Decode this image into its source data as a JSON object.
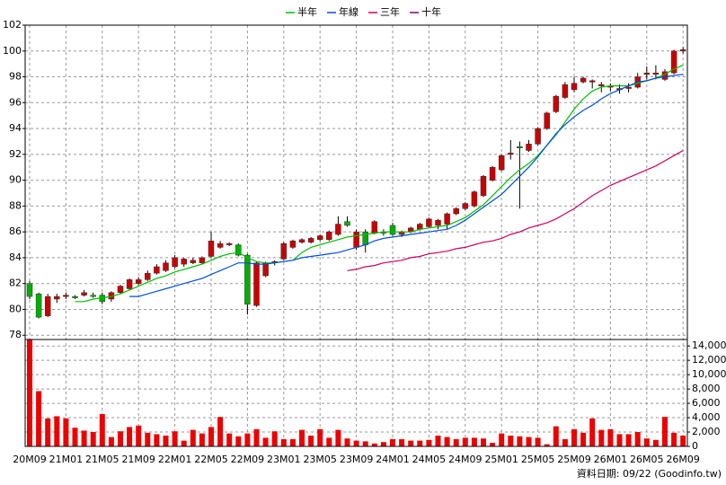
{
  "chart_data": [
    {
      "type": "candlestick",
      "categories": [
        "20M09",
        null,
        null,
        null,
        "21M01",
        null,
        null,
        null,
        "21M05",
        null,
        null,
        null,
        "21M09",
        null,
        null,
        null,
        "22M01",
        null,
        null,
        null,
        "22M05",
        null,
        null,
        null,
        "22M09",
        null,
        null,
        null,
        "23M01",
        null,
        null,
        null,
        "23M05",
        null,
        null,
        null,
        "23M09",
        null,
        null,
        null,
        "24M01",
        null,
        null,
        null,
        "24M05",
        null,
        null,
        null,
        "24M09",
        null,
        null,
        null,
        "25M01",
        null,
        null,
        null,
        "25M05",
        null,
        null,
        null,
        "25M09",
        null,
        null,
        null,
        "26M01",
        null,
        null,
        null,
        "26M05",
        null,
        null,
        null,
        "26M09"
      ],
      "open": [
        82.0,
        81.2,
        79.5,
        80.8,
        81.0,
        81.0,
        81.1,
        81.1,
        81.1,
        80.8,
        81.3,
        81.6,
        82.0,
        82.3,
        82.8,
        83.0,
        83.3,
        83.5,
        83.6,
        83.6,
        84.1,
        84.8,
        85.0,
        85.0,
        84.2,
        80.3,
        82.6,
        83.6,
        83.9,
        84.8,
        85.2,
        85.2,
        85.4,
        85.4,
        85.8,
        86.8,
        84.8,
        86.0,
        85.9,
        86.0,
        86.5,
        85.8,
        86.0,
        86.2,
        86.4,
        86.5,
        86.6,
        87.4,
        87.8,
        88.0,
        88.8,
        90.0,
        90.8,
        92.0,
        92.6,
        92.3,
        92.8,
        94.0,
        95.3,
        96.4,
        97.0,
        97.6,
        97.6,
        97.3,
        97.2,
        97.0,
        97.1,
        97.2,
        98.2,
        98.2,
        97.8,
        98.3,
        100.0
      ],
      "high": [
        82.2,
        81.3,
        81.2,
        81.2,
        81.3,
        81.1,
        81.5,
        81.3,
        81.3,
        81.4,
        81.9,
        82.4,
        82.5,
        83.0,
        83.5,
        83.8,
        84.2,
        84.0,
        84.0,
        84.1,
        86.0,
        85.3,
        85.2,
        85.1,
        84.3,
        83.7,
        83.7,
        83.8,
        85.2,
        85.4,
        85.5,
        85.6,
        85.8,
        86.1,
        87.2,
        87.2,
        86.2,
        86.2,
        86.9,
        86.2,
        86.7,
        86.1,
        86.4,
        86.7,
        87.1,
        87.0,
        87.5,
        87.9,
        88.3,
        89.2,
        90.4,
        91.1,
        92.0,
        93.1,
        93.0,
        93.1,
        94.1,
        95.3,
        96.6,
        97.6,
        98.0,
        98.0,
        97.8,
        97.6,
        97.5,
        97.4,
        97.5,
        98.3,
        98.8,
        98.9,
        98.6,
        100.1,
        100.3
      ],
      "low": [
        80.8,
        79.3,
        79.4,
        80.5,
        80.8,
        80.8,
        81.0,
        80.9,
        80.4,
        80.6,
        81.2,
        81.5,
        81.9,
        82.2,
        82.7,
        82.9,
        83.2,
        83.3,
        83.5,
        83.5,
        84.0,
        84.7,
        84.9,
        84.1,
        79.6,
        80.2,
        82.5,
        83.4,
        83.8,
        84.7,
        85.1,
        85.1,
        85.3,
        85.3,
        85.7,
        86.4,
        84.6,
        84.4,
        85.8,
        85.7,
        85.7,
        85.6,
        85.9,
        86.1,
        86.3,
        86.2,
        86.2,
        87.3,
        87.7,
        87.9,
        88.7,
        89.9,
        90.7,
        91.6,
        87.8,
        92.2,
        92.7,
        93.9,
        95.2,
        96.3,
        96.8,
        97.5,
        97.1,
        96.8,
        96.9,
        96.7,
        96.8,
        97.1,
        97.8,
        97.8,
        97.7,
        98.2,
        99.8
      ],
      "close": [
        81.0,
        79.4,
        81.0,
        81.0,
        81.1,
        80.9,
        81.3,
        81.0,
        80.6,
        81.3,
        81.8,
        82.3,
        82.3,
        82.8,
        83.3,
        83.6,
        84.0,
        83.9,
        83.8,
        84.0,
        85.3,
        85.1,
        85.1,
        84.2,
        80.4,
        83.6,
        83.6,
        83.7,
        85.1,
        85.3,
        85.4,
        85.5,
        85.7,
        86.0,
        86.6,
        86.5,
        86.0,
        85.0,
        86.8,
        85.9,
        85.8,
        86.0,
        86.3,
        86.6,
        87.0,
        86.9,
        87.4,
        87.8,
        88.2,
        89.1,
        90.3,
        91.0,
        91.9,
        92.1,
        92.5,
        92.8,
        94.0,
        95.2,
        96.5,
        97.4,
        97.5,
        97.9,
        97.7,
        97.4,
        97.3,
        97.1,
        97.2,
        98.0,
        98.3,
        98.3,
        98.4,
        100.0,
        100.1
      ],
      "up_color": "#cc0000",
      "down_color": "#00b000",
      "series": [
        {
          "name": "半年",
          "color": "#00c000",
          "values": [
            null,
            null,
            null,
            null,
            null,
            80.6,
            80.6,
            80.8,
            80.9,
            81.0,
            81.2,
            81.5,
            81.8,
            82.1,
            82.4,
            82.6,
            82.9,
            83.1,
            83.3,
            83.5,
            83.8,
            84.1,
            84.3,
            84.4,
            84.0,
            83.7,
            83.6,
            83.6,
            83.7,
            83.8,
            84.4,
            84.8,
            85.0,
            85.2,
            85.4,
            85.6,
            85.7,
            85.8,
            85.9,
            86.0,
            86.0,
            86.0,
            86.0,
            86.2,
            86.3,
            86.4,
            86.5,
            86.8,
            87.1,
            87.6,
            88.1,
            88.8,
            89.5,
            90.2,
            90.8,
            91.3,
            91.9,
            92.7,
            93.5,
            94.5,
            95.5,
            96.3,
            96.9,
            97.2,
            97.3,
            97.3,
            97.3,
            97.5,
            97.7,
            97.9,
            98.2,
            98.6,
            98.9
          ]
        },
        {
          "name": "年線",
          "color": "#0050e0",
          "values": [
            null,
            null,
            null,
            null,
            null,
            null,
            null,
            null,
            null,
            null,
            null,
            81.0,
            81.0,
            81.2,
            81.4,
            81.6,
            81.8,
            82.0,
            82.2,
            82.4,
            82.7,
            83.0,
            83.3,
            83.6,
            83.6,
            83.5,
            83.5,
            83.6,
            83.7,
            83.8,
            84.0,
            84.1,
            84.2,
            84.3,
            84.4,
            84.6,
            84.8,
            85.0,
            85.3,
            85.5,
            85.6,
            85.7,
            85.8,
            85.9,
            86.0,
            86.1,
            86.2,
            86.5,
            86.9,
            87.4,
            87.9,
            88.4,
            88.9,
            89.6,
            90.3,
            91.0,
            91.8,
            92.7,
            93.6,
            94.3,
            94.9,
            95.4,
            95.8,
            96.3,
            96.7,
            97.0,
            97.3,
            97.6,
            97.7,
            97.9,
            98.0,
            98.1,
            98.2
          ]
        },
        {
          "name": "三年",
          "color": "#cc0066",
          "values": [
            null,
            null,
            null,
            null,
            null,
            null,
            null,
            null,
            null,
            null,
            null,
            null,
            null,
            null,
            null,
            null,
            null,
            null,
            null,
            null,
            null,
            null,
            null,
            null,
            null,
            null,
            null,
            null,
            null,
            null,
            null,
            null,
            null,
            null,
            null,
            83.0,
            83.1,
            83.3,
            83.4,
            83.6,
            83.7,
            83.8,
            84.0,
            84.1,
            84.3,
            84.4,
            84.5,
            84.7,
            84.8,
            85.0,
            85.2,
            85.3,
            85.5,
            85.8,
            86.0,
            86.3,
            86.5,
            86.7,
            87.0,
            87.4,
            87.8,
            88.3,
            88.8,
            89.2,
            89.6,
            89.9,
            90.2,
            90.5,
            90.8,
            91.1,
            91.5,
            91.9,
            92.3
          ]
        },
        {
          "name": "十年",
          "color": "#800080",
          "values": [
            null,
            null,
            null,
            null,
            null,
            null,
            null,
            null,
            null,
            null,
            null,
            null,
            null,
            null,
            null,
            null,
            null,
            null,
            null,
            null,
            null,
            null,
            null,
            null,
            null,
            null,
            null,
            null,
            null,
            null,
            null,
            null,
            null,
            null,
            null,
            null,
            null,
            null,
            null,
            null,
            null,
            null,
            null,
            null,
            null,
            null,
            null,
            null,
            null,
            null,
            null,
            null,
            null,
            null,
            null,
            null,
            null,
            null,
            null,
            null,
            null,
            null,
            null,
            null,
            null,
            null,
            null,
            null,
            null,
            null,
            null,
            null,
            null
          ]
        }
      ],
      "ylim": [
        77.6,
        102
      ],
      "yticks": [
        78,
        80,
        82,
        84,
        86,
        88,
        90,
        92,
        94,
        96,
        98,
        100,
        102
      ],
      "grid": true
    },
    {
      "type": "bar",
      "color": "#ee0000",
      "values": [
        14900,
        7700,
        3900,
        4200,
        3900,
        2600,
        2200,
        2000,
        4500,
        1300,
        2100,
        2700,
        2900,
        1900,
        1700,
        1500,
        2100,
        800,
        2300,
        1800,
        2700,
        4100,
        1800,
        1400,
        1800,
        2400,
        1200,
        2100,
        1000,
        1000,
        2300,
        1500,
        2400,
        1200,
        2300,
        1100,
        800,
        700,
        400,
        600,
        1000,
        1000,
        800,
        800,
        900,
        1500,
        1300,
        1000,
        1200,
        1200,
        1100,
        500,
        1800,
        1500,
        1400,
        1300,
        1200,
        300,
        2800,
        1000,
        2400,
        1900,
        3900,
        2300,
        2400,
        1700,
        1700,
        2000,
        1100,
        900,
        4100,
        1900,
        1500
      ],
      "ylim": [
        0,
        14900
      ],
      "yticks": [
        0,
        {
          "value": 2000,
          "label": "2,000"
        },
        {
          "value": 4000,
          "label": "4,000"
        },
        {
          "value": 6000,
          "label": "6,000"
        },
        {
          "value": 8000,
          "label": "8,000"
        },
        {
          "value": 10000,
          "label": "10,000"
        },
        {
          "value": 12000,
          "label": "12,000"
        },
        {
          "value": 14000,
          "label": "14,000"
        }
      ],
      "grid": true
    }
  ],
  "footer": "資料日期: 09/22 (Goodinfo.tw)"
}
